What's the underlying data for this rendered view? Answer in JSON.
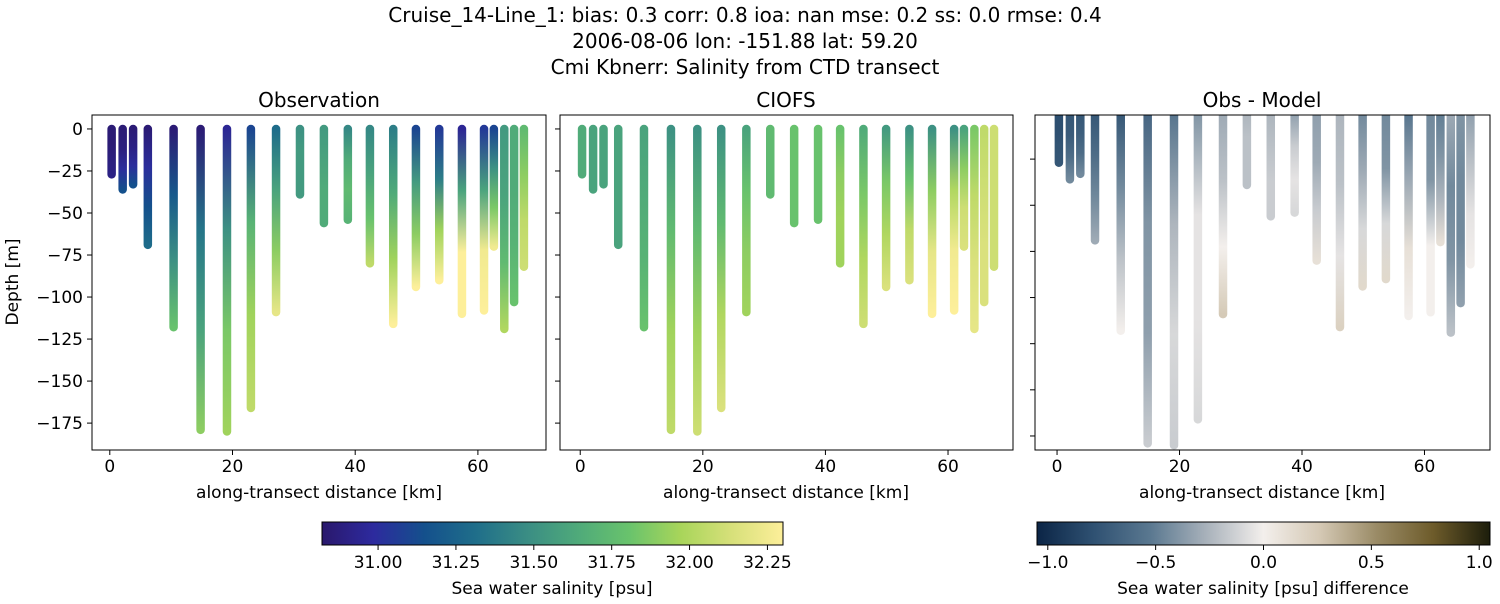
{
  "figure": {
    "title_lines": [
      "Cruise_14-Line_1: bias: 0.3  corr: 0.8  ioa: nan  mse: 0.2  ss: 0.0  rmse: 0.4",
      "2006-08-06 lon: -151.88 lat: 59.20",
      "Cmi Kbnerr: Salinity from CTD transect"
    ]
  },
  "chart_data": [
    {
      "type": "scatter",
      "title": "Observation",
      "xlabel": "along-transect distance [km]",
      "ylabel": "Depth [m]",
      "xlim": [
        -2.9,
        71.1
      ],
      "ylim": [
        -191,
        8.3
      ],
      "xticks": [
        0,
        20,
        40,
        60
      ],
      "yticks": [
        0,
        -25,
        -50,
        -75,
        -100,
        -125,
        -150,
        -175
      ],
      "colormap": "haline",
      "field": "obs"
    },
    {
      "type": "scatter",
      "title": "CIOFS",
      "xlabel": "along-transect distance [km]",
      "xlim": [
        -3.3,
        70.6
      ],
      "ylim": [
        -191,
        8.3
      ],
      "xticks": [
        0,
        20,
        40,
        60
      ],
      "yticks": [
        0,
        -25,
        -50,
        -75,
        -100,
        -125,
        -150,
        -175
      ],
      "colormap": "haline",
      "field": "model"
    },
    {
      "type": "scatter",
      "title": "Obs - Model",
      "xlabel": "along-transect distance [km]",
      "xlim": [
        -3.6,
        70.7
      ],
      "ylim": [
        -182.6,
        -1.1
      ],
      "xticks": [
        0,
        20,
        40,
        60
      ],
      "yticks": [
        -25,
        -50,
        -75,
        -100,
        -125,
        -150,
        -175
      ],
      "colormap": "diff",
      "field": "diff"
    }
  ],
  "stations": {
    "note_levels": "salinity values sampled top to bottom at evenly spaced depths",
    "distance_km": [
      0.3,
      2.1,
      3.8,
      6.2,
      10.4,
      14.8,
      19.1,
      23.0,
      27.1,
      31.0,
      34.9,
      38.8,
      42.4,
      46.2,
      49.9,
      53.7,
      57.4,
      61.0,
      62.6,
      64.3,
      65.9,
      67.5
    ],
    "max_depth_m": [
      27,
      36,
      33,
      69,
      118,
      179,
      180,
      166,
      109,
      39,
      56,
      54,
      80,
      116,
      94,
      90,
      110,
      108,
      70,
      119,
      103,
      82
    ],
    "obs": [
      [
        30.85,
        30.85,
        30.88,
        30.9
      ],
      [
        30.85,
        30.88,
        31.0,
        31.15
      ],
      [
        30.85,
        30.9,
        31.0,
        31.15
      ],
      [
        30.85,
        31.0,
        31.15,
        31.3
      ],
      [
        30.85,
        31.2,
        31.5,
        31.8
      ],
      [
        30.85,
        31.35,
        31.6,
        31.9
      ],
      [
        30.95,
        31.5,
        31.85,
        31.95
      ],
      [
        31.1,
        31.7,
        31.95,
        32.05
      ],
      [
        31.3,
        31.6,
        31.9,
        32.2
      ],
      [
        31.5,
        31.55,
        31.55,
        31.55
      ],
      [
        31.55,
        31.6,
        31.65,
        31.65
      ],
      [
        31.45,
        31.65,
        31.75,
        31.7
      ],
      [
        31.45,
        31.6,
        31.8,
        32.05
      ],
      [
        31.4,
        31.65,
        31.95,
        32.3
      ],
      [
        31.1,
        31.55,
        31.9,
        32.3
      ],
      [
        31.05,
        31.4,
        31.95,
        32.3
      ],
      [
        30.95,
        31.6,
        32.3,
        32.3
      ],
      [
        31.05,
        31.6,
        32.25,
        32.3
      ],
      [
        31.1,
        31.5,
        31.85,
        32.25
      ],
      [
        31.55,
        31.6,
        31.75,
        32.0
      ],
      [
        31.65,
        31.65,
        31.7,
        31.8
      ],
      [
        31.75,
        31.9,
        32.05,
        32.1
      ]
    ],
    "model": [
      [
        31.65,
        31.65,
        31.65,
        31.65
      ],
      [
        31.6,
        31.6,
        31.6,
        31.6
      ],
      [
        31.6,
        31.6,
        31.6,
        31.6
      ],
      [
        31.6,
        31.6,
        31.6,
        31.6
      ],
      [
        31.6,
        31.65,
        31.7,
        31.8
      ],
      [
        31.5,
        31.75,
        31.95,
        32.05
      ],
      [
        31.5,
        31.75,
        31.95,
        32.1
      ],
      [
        31.5,
        31.75,
        32.0,
        32.15
      ],
      [
        31.6,
        31.8,
        31.9,
        31.95
      ],
      [
        31.75,
        31.75,
        31.75,
        31.75
      ],
      [
        31.8,
        31.8,
        31.8,
        31.8
      ],
      [
        31.8,
        31.8,
        31.8,
        31.8
      ],
      [
        31.8,
        31.9,
        31.95,
        31.95
      ],
      [
        31.65,
        31.85,
        32.0,
        32.1
      ],
      [
        31.55,
        31.85,
        32.0,
        32.15
      ],
      [
        31.5,
        31.8,
        32.05,
        32.15
      ],
      [
        31.5,
        31.9,
        32.2,
        32.3
      ],
      [
        31.5,
        32.0,
        32.25,
        32.3
      ],
      [
        31.6,
        31.9,
        32.1,
        32.15
      ],
      [
        31.85,
        32.05,
        32.15,
        32.2
      ],
      [
        32.05,
        32.1,
        32.15,
        32.15
      ],
      [
        32.1,
        32.1,
        32.1,
        32.1
      ]
    ]
  },
  "colorbars": {
    "salinity": {
      "label": "Sea water salinity [psu]",
      "range": [
        30.82,
        32.3
      ],
      "ticks": [
        "31.00",
        "31.25",
        "31.50",
        "31.75",
        "32.00",
        "32.25"
      ]
    },
    "difference": {
      "label": "Sea water salinity [psu] difference",
      "range": [
        -1.05,
        1.05
      ],
      "ticks": [
        "−1.0",
        "−0.5",
        "0.0",
        "0.5",
        "1.0"
      ]
    }
  },
  "colormaps": {
    "haline": [
      "#2a186c",
      "#2d2a9e",
      "#14508c",
      "#1f6e8a",
      "#3a8d84",
      "#4faa7a",
      "#69c36c",
      "#a8d55a",
      "#d7e07a",
      "#fdef9a"
    ],
    "diff": [
      "#0b2546",
      "#2f5172",
      "#5a7890",
      "#a9b2bb",
      "#f3efec",
      "#d4c8b4",
      "#9a8b66",
      "#6d5b2a",
      "#1c1d0b"
    ]
  }
}
